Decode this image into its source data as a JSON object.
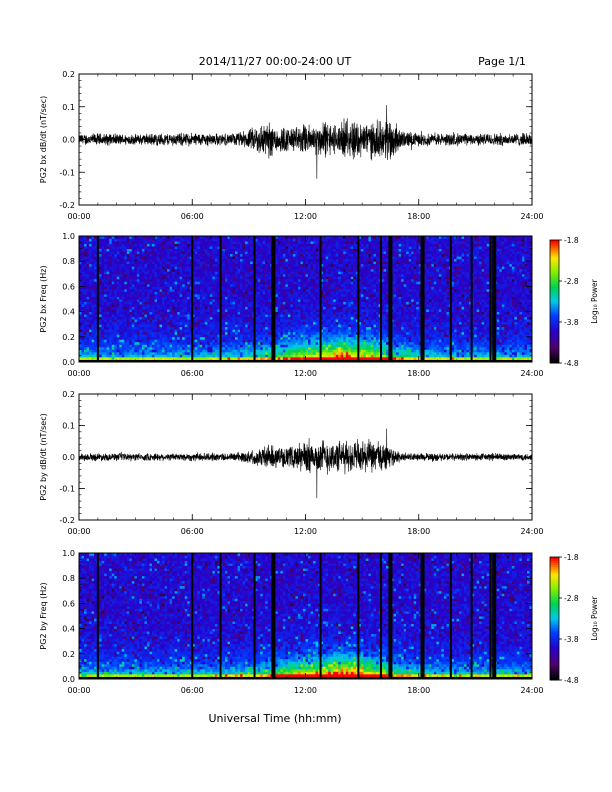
{
  "header": {
    "title": "2014/11/27  00:00-24:00 UT",
    "page": "Page 1/1"
  },
  "footer": {
    "xlabel": "Universal Time (hh:mm)"
  },
  "colorbar": {
    "tick_labels": [
      "-1.8",
      "-2.8",
      "-3.8",
      "-4.8"
    ],
    "tick_values": [
      -1.8,
      -2.8,
      -3.8,
      -4.8
    ],
    "range": [
      -4.8,
      -1.8
    ],
    "label": "Log₁₀ Power"
  },
  "chart_data": [
    {
      "type": "line",
      "ylabel": "PG2 bx dB/dt (nT/sec)",
      "ylim": [
        -0.2,
        0.2
      ],
      "yticks": [
        -0.2,
        -0.1,
        0.0,
        0.1,
        0.2
      ],
      "ytick_labels": [
        "-0.2",
        "-0.1",
        "0.0",
        "0.1",
        "0.2"
      ],
      "xlim": [
        0,
        24
      ],
      "xticks": [
        0,
        6,
        12,
        18,
        24
      ],
      "xtick_labels": [
        "00:00",
        "06:00",
        "12:00",
        "18:00",
        "24:00"
      ],
      "envelope": {
        "hours": [
          0,
          1,
          2,
          3,
          4,
          5,
          6,
          7,
          8,
          9,
          9.5,
          10,
          10.5,
          11,
          11.5,
          12,
          12.5,
          13,
          13.5,
          14,
          14.5,
          15,
          15.5,
          16,
          16.5,
          17,
          18,
          19,
          20,
          21,
          22,
          23,
          24
        ],
        "amplitude": [
          0.018,
          0.02,
          0.018,
          0.017,
          0.02,
          0.02,
          0.022,
          0.02,
          0.018,
          0.03,
          0.05,
          0.06,
          0.045,
          0.04,
          0.04,
          0.05,
          0.045,
          0.06,
          0.05,
          0.05,
          0.07,
          0.055,
          0.06,
          0.055,
          0.08,
          0.03,
          0.02,
          0.02,
          0.02,
          0.018,
          0.02,
          0.02,
          0.02
        ],
        "peak_max": 0.105,
        "peak_min": -0.12
      }
    },
    {
      "type": "heatmap",
      "ylabel": "PG2 bx Freq (Hz)",
      "ylim": [
        0.0,
        1.0
      ],
      "yticks": [
        0.0,
        0.2,
        0.4,
        0.6,
        0.8,
        1.0
      ],
      "ytick_labels": [
        "0.0",
        "0.2",
        "0.4",
        "0.6",
        "0.8",
        "1.0"
      ],
      "xlim": [
        0,
        24
      ],
      "xticks": [
        0,
        6,
        12,
        18,
        24
      ],
      "xtick_labels": [
        "00:00",
        "06:00",
        "12:00",
        "18:00",
        "24:00"
      ],
      "zlim": [
        -4.8,
        -1.8
      ],
      "data_gaps_hours": [
        1.0,
        6.0,
        7.5,
        9.3,
        10.3,
        12.8,
        14.8,
        16.0,
        16.5,
        18.2,
        19.7,
        20.8,
        21.8,
        22.0
      ],
      "active_bands_hours": [
        [
          13.5,
          16.5
        ]
      ]
    },
    {
      "type": "line",
      "ylabel": "PG2 by dB/dt (nT/sec)",
      "ylim": [
        -0.2,
        0.2
      ],
      "yticks": [
        -0.2,
        -0.1,
        0.0,
        0.1,
        0.2
      ],
      "ytick_labels": [
        "-0.2",
        "-0.1",
        "0.0",
        "0.1",
        "0.2"
      ],
      "xlim": [
        0,
        24
      ],
      "xticks": [
        0,
        6,
        12,
        18,
        24
      ],
      "xtick_labels": [
        "00:00",
        "06:00",
        "12:00",
        "18:00",
        "24:00"
      ],
      "envelope": {
        "hours": [
          0,
          1,
          2,
          3,
          4,
          5,
          6,
          7,
          8,
          9,
          9.5,
          10,
          10.5,
          11,
          11.5,
          12,
          12.5,
          13,
          13.5,
          14,
          14.5,
          15,
          15.5,
          16,
          16.5,
          17,
          18,
          19,
          20,
          21,
          22,
          23,
          24
        ],
        "amplitude": [
          0.012,
          0.013,
          0.012,
          0.012,
          0.013,
          0.012,
          0.014,
          0.013,
          0.013,
          0.02,
          0.03,
          0.04,
          0.035,
          0.03,
          0.04,
          0.06,
          0.05,
          0.06,
          0.05,
          0.055,
          0.05,
          0.06,
          0.05,
          0.055,
          0.03,
          0.015,
          0.013,
          0.013,
          0.012,
          0.012,
          0.013,
          0.012,
          0.012
        ],
        "peak_max": 0.09,
        "peak_min": -0.13
      }
    },
    {
      "type": "heatmap",
      "ylabel": "PG2 by Freq (Hz)",
      "ylim": [
        0.0,
        1.0
      ],
      "yticks": [
        0.0,
        0.2,
        0.4,
        0.6,
        0.8,
        1.0
      ],
      "ytick_labels": [
        "0.0",
        "0.2",
        "0.4",
        "0.6",
        "0.8",
        "1.0"
      ],
      "xlim": [
        0,
        24
      ],
      "xticks": [
        0,
        6,
        12,
        18,
        24
      ],
      "xtick_labels": [
        "00:00",
        "06:00",
        "12:00",
        "18:00",
        "24:00"
      ],
      "zlim": [
        -4.8,
        -1.8
      ],
      "data_gaps_hours": [
        1.0,
        6.0,
        7.5,
        9.3,
        10.3,
        12.8,
        14.8,
        16.0,
        16.5,
        18.2,
        19.7,
        20.8,
        21.8,
        22.0
      ],
      "active_bands_hours": [
        [
          13.5,
          16.5
        ]
      ]
    }
  ]
}
